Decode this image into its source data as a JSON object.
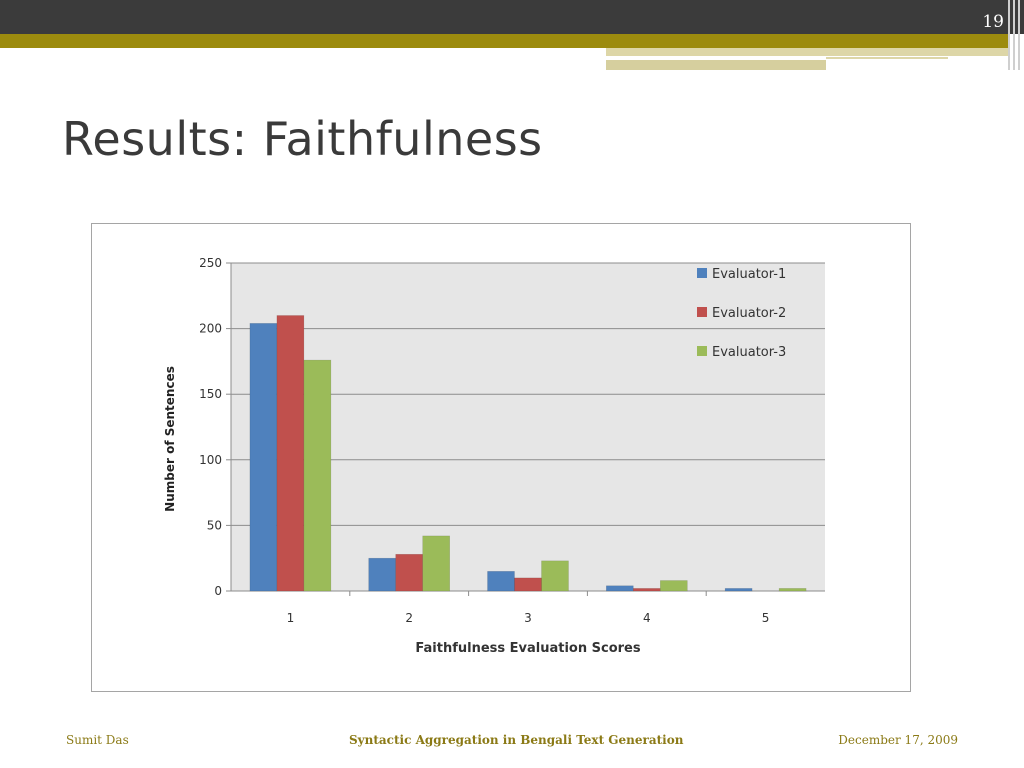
{
  "slide": {
    "number": "19",
    "title": "Results: Faithfulness"
  },
  "footer": {
    "author": "Sumit Das",
    "talk_title": "Syntactic Aggregation in Bengali Text Generation",
    "date": "December 17, 2009"
  },
  "colors": {
    "topbar": "#3b3b3b",
    "accent_gold": "#9c8b0e",
    "footer_text": "#8b7a16",
    "plot_background": "#e6e6e6"
  },
  "chart_data": {
    "type": "bar",
    "title": "",
    "xlabel": "Faithfulness Evaluation  Scores",
    "ylabel": "Number of Sentences",
    "categories": [
      "1",
      "2",
      "3",
      "4",
      "5"
    ],
    "ylim": [
      0,
      250
    ],
    "yticks": [
      0,
      50,
      100,
      150,
      200,
      250
    ],
    "grid": true,
    "legend_position": "top-right",
    "series": [
      {
        "name": "Evaluator-1",
        "color": "#4f81bd",
        "values": [
          204,
          25,
          15,
          4,
          2
        ]
      },
      {
        "name": "Evaluator-2",
        "color": "#c0504d",
        "values": [
          210,
          28,
          10,
          2,
          0
        ]
      },
      {
        "name": "Evaluator-3",
        "color": "#9bbb59",
        "values": [
          176,
          42,
          23,
          8,
          2
        ]
      }
    ]
  }
}
